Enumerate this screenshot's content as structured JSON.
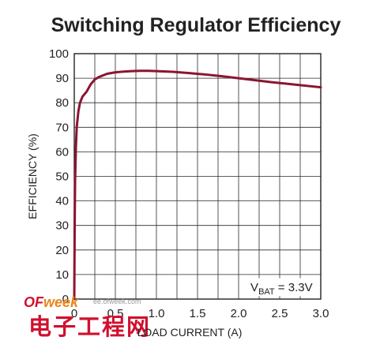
{
  "chart_data": {
    "type": "line",
    "title": "Switching Regulator Efficiency",
    "xlabel": "LOAD CURRENT (A)",
    "ylabel": "EFFICIENCY (%)",
    "xlim": [
      0,
      3.0
    ],
    "ylim": [
      0,
      100
    ],
    "x_ticks": [
      "0",
      "0.5",
      "1.0",
      "1.5",
      "2.0",
      "2.5",
      "3.0"
    ],
    "y_ticks": [
      "0",
      "10",
      "20",
      "30",
      "40",
      "50",
      "60",
      "70",
      "80",
      "90",
      "100"
    ],
    "x_minor_step": 0.25,
    "grid": true,
    "annotation": {
      "main": "V",
      "sub": "BAT",
      "rest": " = 3.3V",
      "placement": "bottom-right"
    },
    "series": [
      {
        "color": "#8b1530",
        "x": [
          0.0,
          0.005,
          0.01,
          0.02,
          0.03,
          0.05,
          0.07,
          0.1,
          0.15,
          0.2,
          0.25,
          0.3,
          0.4,
          0.5,
          0.6,
          0.7,
          0.8,
          0.9,
          1.0,
          1.2,
          1.4,
          1.6,
          1.8,
          2.0,
          2.2,
          2.4,
          2.6,
          2.8,
          3.0
        ],
        "values": [
          0,
          30,
          48,
          62,
          70,
          76.5,
          80,
          82.5,
          84.5,
          87.5,
          89.5,
          90.5,
          91.8,
          92.4,
          92.7,
          92.9,
          93.0,
          93.0,
          92.9,
          92.6,
          92.1,
          91.5,
          90.8,
          90.0,
          89.2,
          88.4,
          87.7,
          87.0,
          86.3
        ]
      }
    ]
  },
  "watermark": {
    "logo_part1": "OF",
    "logo_part2": "week",
    "url": "ee.ofweek.com",
    "chinese": "电子工程网",
    "logo_color": "#d0102e",
    "logo_color2": "#e8861a"
  }
}
